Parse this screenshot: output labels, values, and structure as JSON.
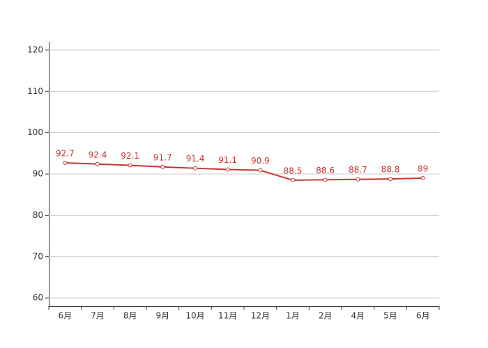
{
  "chart_data": {
    "type": "line",
    "categories": [
      "6月",
      "7月",
      "8月",
      "9月",
      "10月",
      "11月",
      "12月",
      "1月",
      "2月",
      "4月",
      "5月",
      "6月"
    ],
    "values": [
      92.7,
      92.4,
      92.1,
      91.7,
      91.4,
      91.1,
      90.9,
      88.5,
      88.6,
      88.7,
      88.8,
      89
    ],
    "color": "#c23531",
    "ylim": [
      58,
      122
    ],
    "yticks": [
      60,
      70,
      80,
      90,
      100,
      110,
      120
    ],
    "grid": true
  }
}
